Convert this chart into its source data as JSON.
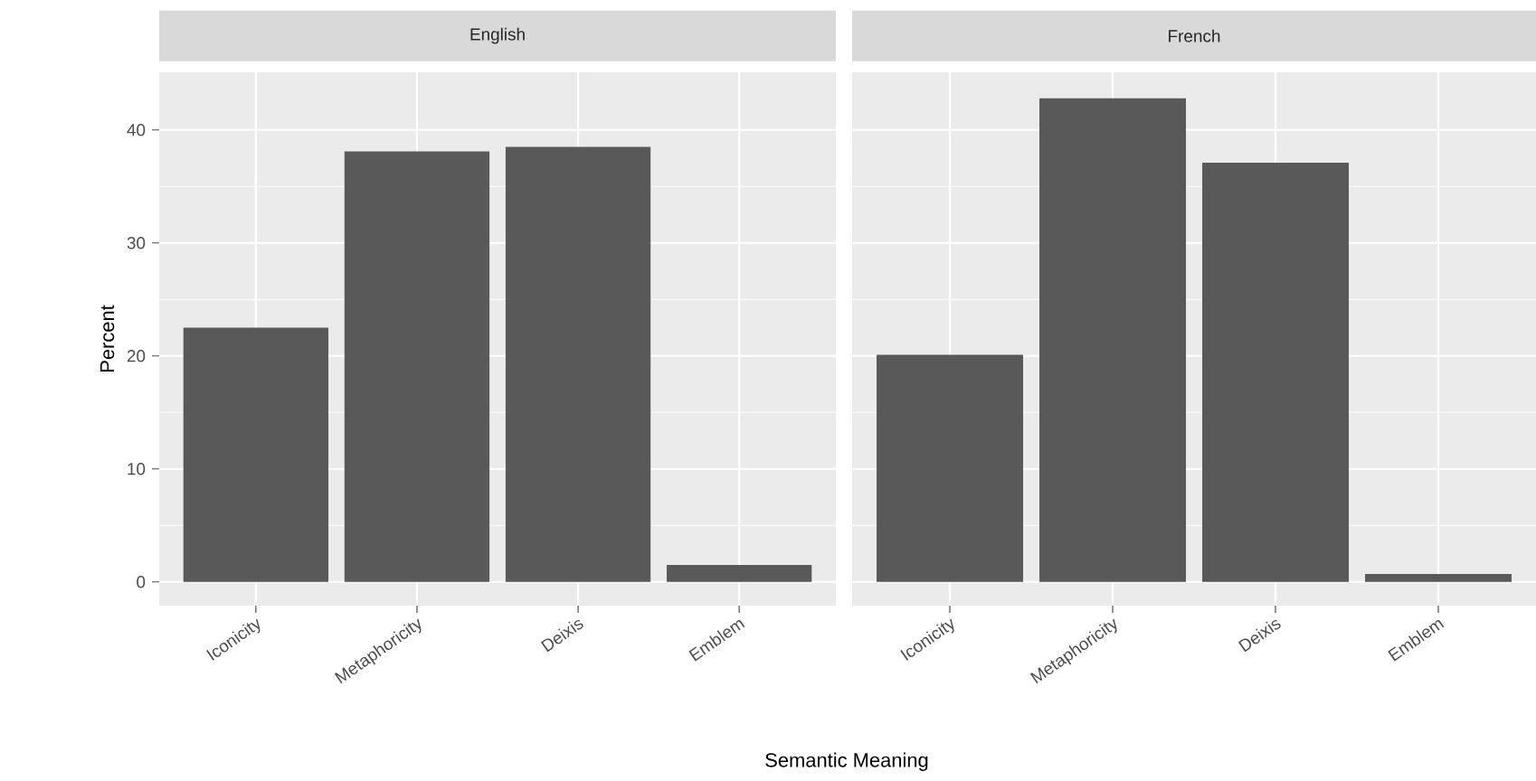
{
  "chart_data": [
    {
      "type": "bar",
      "title": "English",
      "categories": [
        "Iconicity",
        "Metaphoricity",
        "Deixis",
        "Emblem"
      ],
      "values": [
        22.5,
        38.1,
        38.5,
        1.5
      ],
      "color": "#595959",
      "ylim": [
        -2.1,
        45.1
      ],
      "yticks": [
        0,
        10,
        20,
        30,
        40
      ],
      "grid": true,
      "ylabel": "Percent",
      "xlabel": "Semantic Meaning"
    },
    {
      "type": "bar",
      "title": "French",
      "categories": [
        "Iconicity",
        "Metaphoricity",
        "Deixis",
        "Emblem"
      ],
      "values": [
        20.1,
        42.8,
        37.1,
        0.7
      ],
      "color": "#595959",
      "ylim": [
        -2.1,
        45.1
      ],
      "yticks": [
        0,
        10,
        20,
        30,
        40
      ],
      "grid": true,
      "tick_labels": "x"
    }
  ]
}
